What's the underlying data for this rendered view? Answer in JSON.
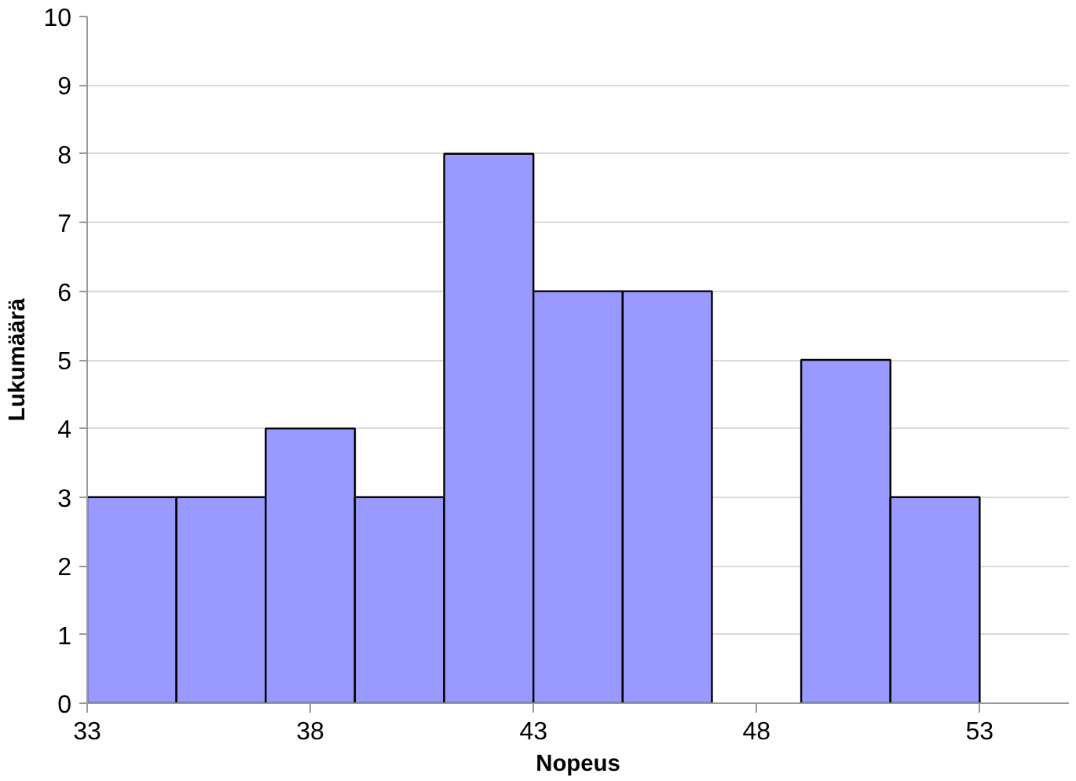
{
  "chart_data": {
    "type": "histogram",
    "xlabel": "Nopeus",
    "ylabel": "Lukumäärä",
    "bins": [
      33,
      35,
      37,
      39,
      41,
      43,
      45,
      47,
      49,
      51,
      53
    ],
    "values": [
      3,
      3,
      4,
      3,
      8,
      6,
      6,
      0,
      5,
      3
    ],
    "color": "#9999ff",
    "xlim": [
      33,
      55
    ],
    "xticks": [
      33,
      38,
      43,
      48,
      53
    ],
    "ylim": [
      0,
      10
    ],
    "yticks": [
      0,
      1,
      2,
      3,
      4,
      5,
      6,
      7,
      8,
      9,
      10
    ],
    "grid": "y"
  }
}
